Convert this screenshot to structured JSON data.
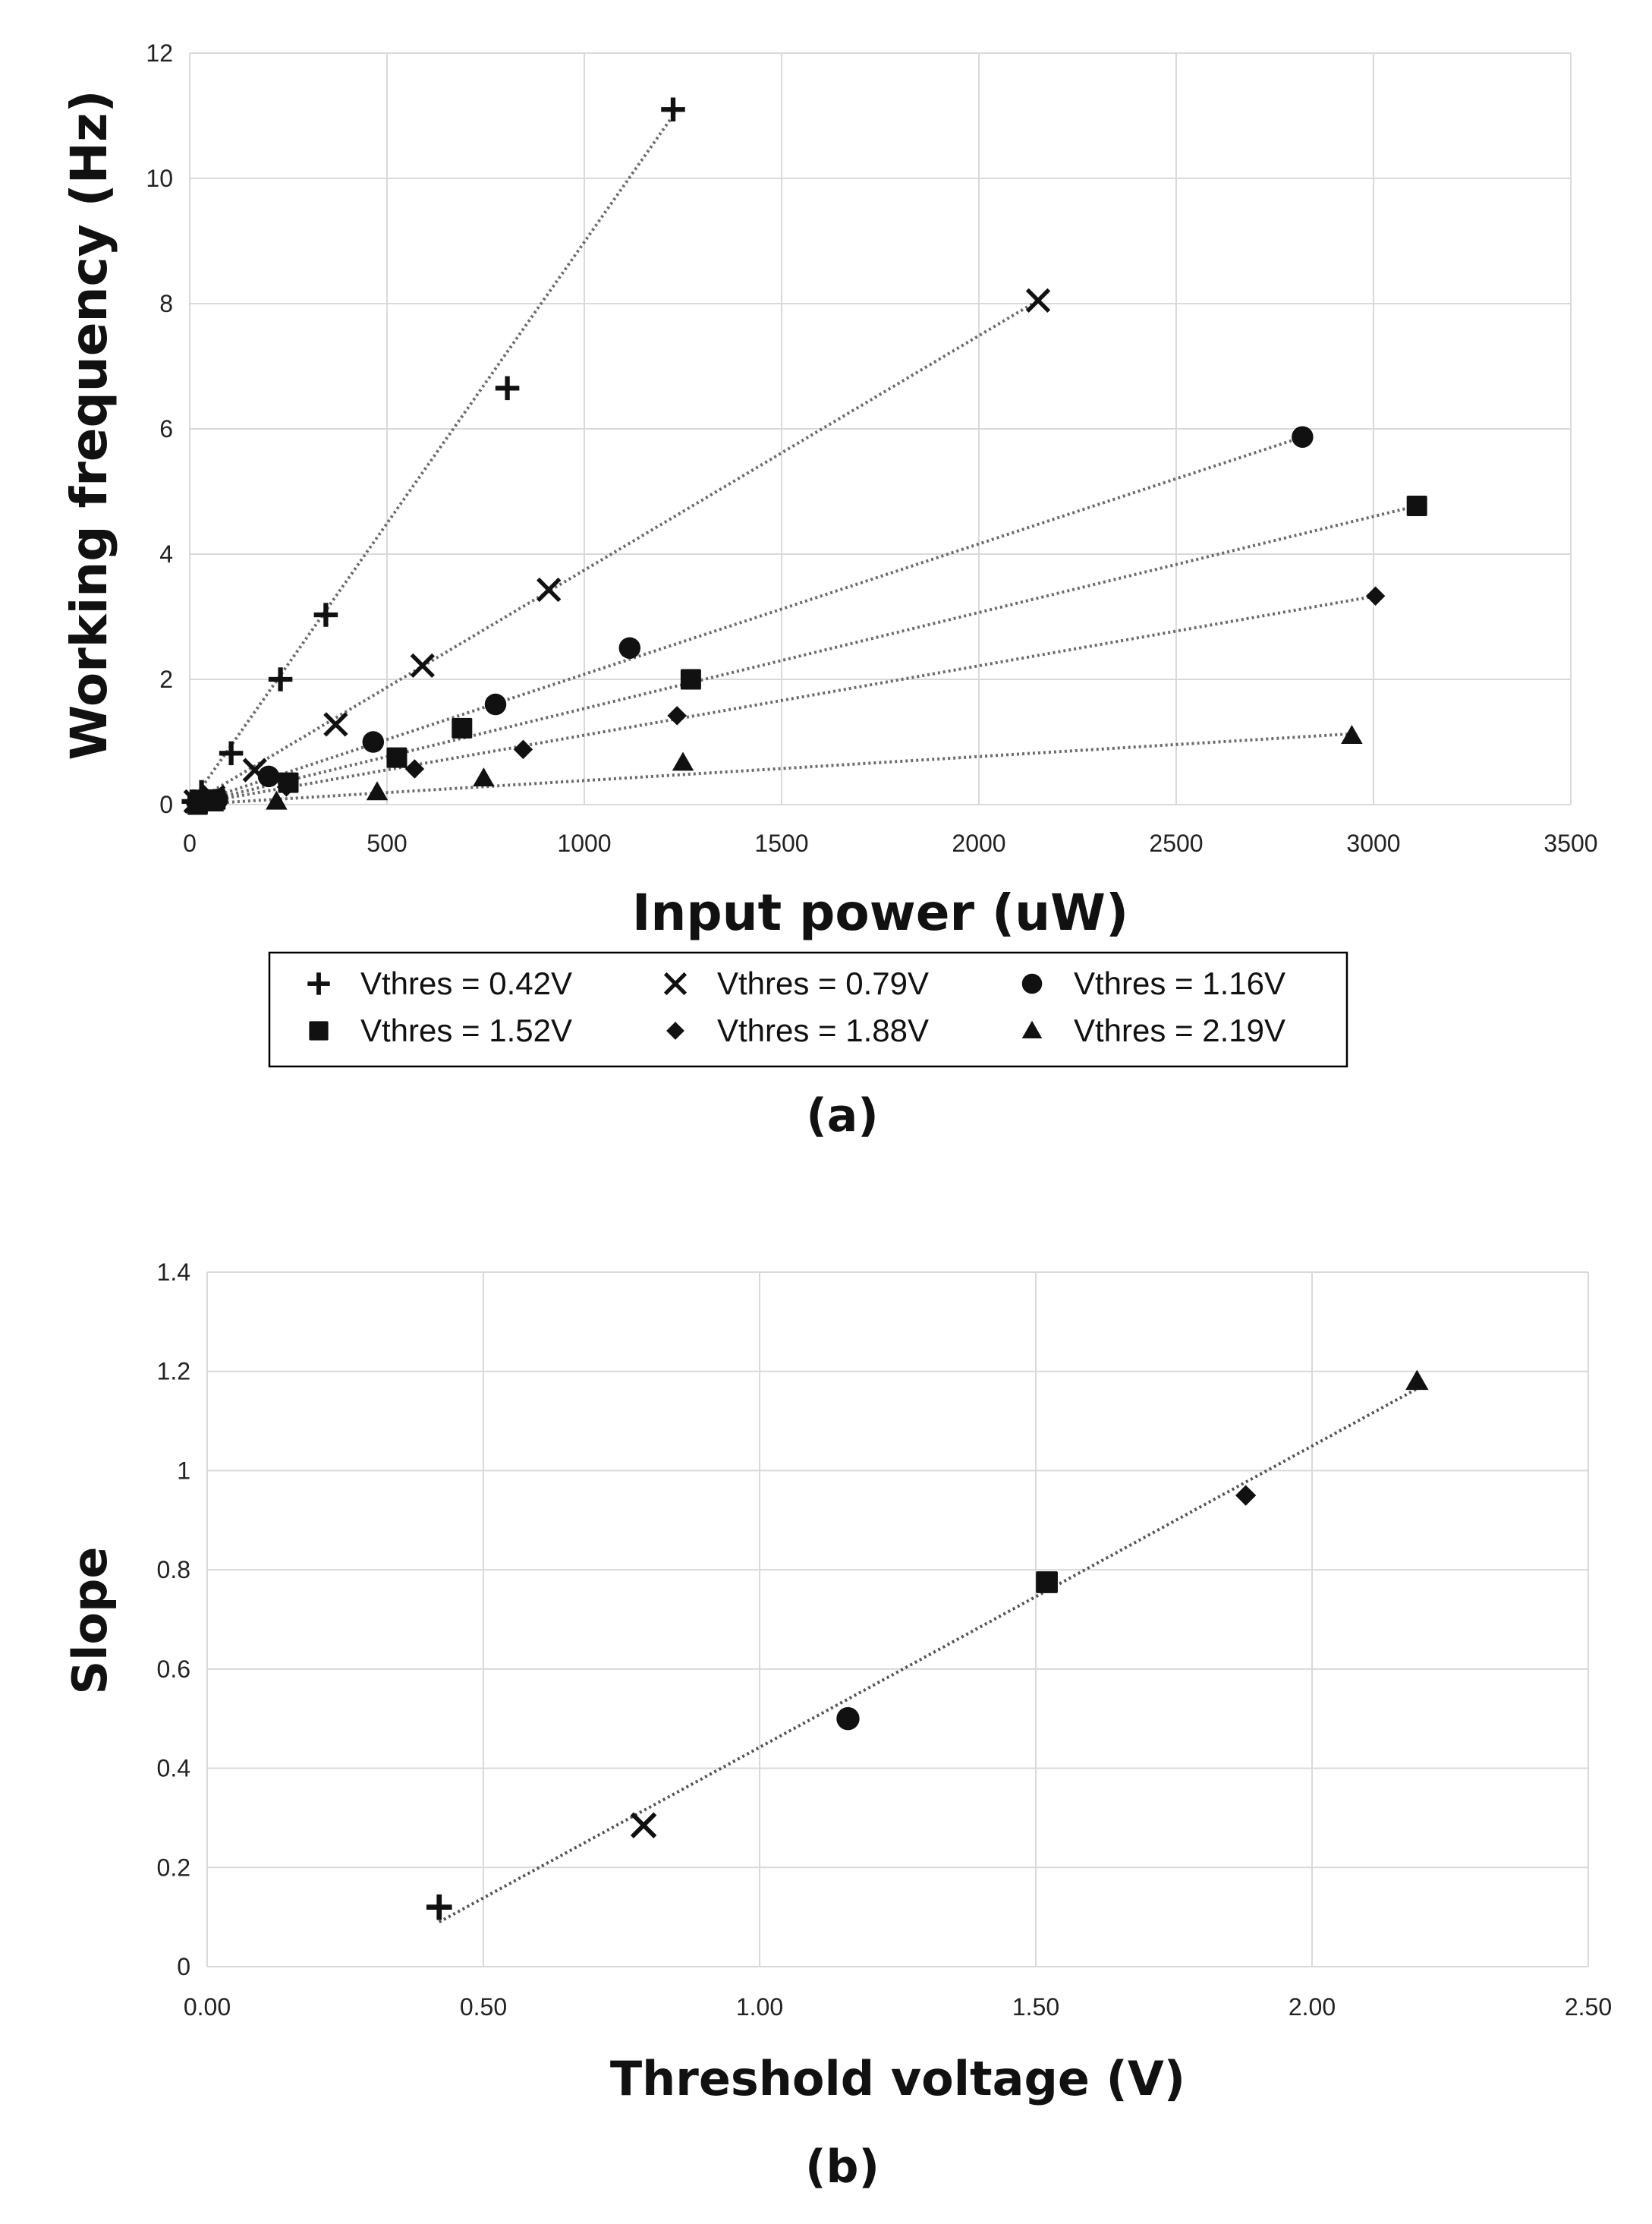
{
  "chart_data": [
    {
      "type": "scatter",
      "panel_label": "(a)",
      "title": "",
      "xlabel": "Input power (uW)",
      "ylabel": "Working frequency (Hz)",
      "xlim": [
        0,
        3500
      ],
      "ylim": [
        0,
        12
      ],
      "xticks": [
        0,
        500,
        1000,
        1500,
        2000,
        2500,
        3000,
        3500
      ],
      "yticks": [
        0,
        2,
        4,
        6,
        8,
        10,
        12
      ],
      "xtick_labels": [
        "0",
        "500",
        "1000",
        "1500",
        "2000",
        "2500",
        "3000",
        "3500"
      ],
      "ytick_labels": [
        "0",
        "2",
        "4",
        "6",
        "8",
        "10",
        "12"
      ],
      "grid": true,
      "legend_position": "bottom",
      "series": [
        {
          "name": "Vthres = 0.42V",
          "marker": "plus",
          "x": [
            10,
            30,
            105,
            230,
            345,
            805,
            1225
          ],
          "y": [
            0.05,
            0.2,
            0.82,
            2.0,
            3.03,
            6.65,
            11.1
          ],
          "trend": [
            [
              0,
              0
            ],
            [
              1230,
              11.05
            ]
          ]
        },
        {
          "name": "Vthres = 0.79V",
          "marker": "cross",
          "x": [
            15,
            60,
            165,
            370,
            590,
            910,
            2150
          ],
          "y": [
            0.05,
            0.12,
            0.55,
            1.28,
            2.22,
            3.43,
            8.05
          ],
          "trend": [
            [
              0,
              0
            ],
            [
              2150,
              8.05
            ]
          ]
        },
        {
          "name": "Vthres = 1.16V",
          "marker": "circle",
          "x": [
            20,
            70,
            200,
            465,
            775,
            1115,
            2820
          ],
          "y": [
            0.02,
            0.08,
            0.45,
            1.0,
            1.6,
            2.5,
            5.87
          ],
          "trend": [
            [
              0,
              0
            ],
            [
              2820,
              5.87
            ]
          ]
        },
        {
          "name": "Vthres = 1.52V",
          "marker": "square",
          "x": [
            20,
            65,
            250,
            525,
            690,
            1270,
            3110
          ],
          "y": [
            0.0,
            0.08,
            0.35,
            0.75,
            1.22,
            2.0,
            4.77
          ],
          "trend": [
            [
              0,
              0
            ],
            [
              3110,
              4.77
            ]
          ]
        },
        {
          "name": "Vthres = 1.88V",
          "marker": "diamond",
          "x": [
            15,
            60,
            245,
            570,
            845,
            1235,
            3005
          ],
          "y": [
            0.0,
            0.05,
            0.28,
            0.57,
            0.88,
            1.42,
            3.33
          ],
          "trend": [
            [
              0,
              0
            ],
            [
              3005,
              3.33
            ]
          ]
        },
        {
          "name": "Vthres = 2.19V",
          "marker": "triangle",
          "x": [
            15,
            60,
            220,
            475,
            745,
            1250,
            2945
          ],
          "y": [
            0.0,
            0.02,
            0.05,
            0.2,
            0.42,
            0.67,
            1.1
          ],
          "trend": [
            [
              0,
              0
            ],
            [
              2945,
              1.13
            ]
          ]
        }
      ]
    },
    {
      "type": "scatter",
      "panel_label": "(b)",
      "title": "",
      "xlabel": "Threshold voltage (V)",
      "ylabel": "Slope",
      "xlim": [
        0,
        2.5
      ],
      "ylim": [
        0,
        1.4
      ],
      "xticks": [
        0,
        0.5,
        1.0,
        1.5,
        2.0,
        2.5
      ],
      "yticks": [
        0,
        0.2,
        0.4,
        0.6,
        0.8,
        1.0,
        1.2,
        1.4
      ],
      "xtick_labels": [
        "0.00",
        "0.50",
        "1.00",
        "1.50",
        "2.00",
        "2.50"
      ],
      "ytick_labels": [
        "0",
        "0.2",
        "0.4",
        "0.6",
        "0.8",
        "1",
        "1.2",
        "1.4"
      ],
      "grid": true,
      "points": [
        {
          "x": 0.42,
          "y": 0.12,
          "marker": "plus"
        },
        {
          "x": 0.79,
          "y": 0.285,
          "marker": "cross"
        },
        {
          "x": 1.16,
          "y": 0.5,
          "marker": "circle"
        },
        {
          "x": 1.52,
          "y": 0.775,
          "marker": "square"
        },
        {
          "x": 1.88,
          "y": 0.95,
          "marker": "diamond"
        },
        {
          "x": 2.19,
          "y": 1.18,
          "marker": "triangle"
        }
      ],
      "trend": [
        [
          0.42,
          0.09
        ],
        [
          2.19,
          1.165
        ]
      ]
    }
  ]
}
